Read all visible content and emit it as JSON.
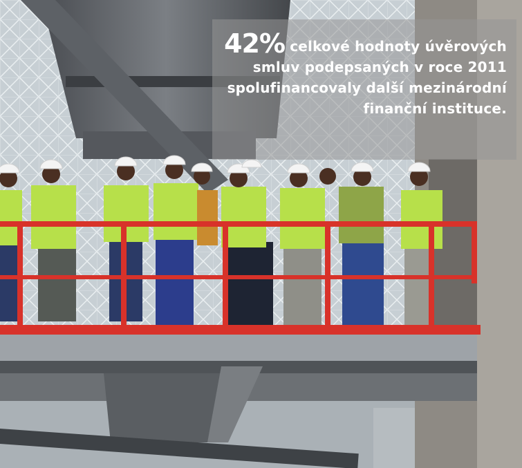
{
  "caption": {
    "highlight": "42%",
    "text": " celkové hodnoty úvěrových smluv podepsaných v roce 2011 spolufinancovaly další mezinárodní finanční instituce."
  },
  "photo": {
    "subject": "Workers in hard hats and high-visibility vests standing on a red-railed steel platform at an industrial plant",
    "colors": {
      "railing": "#d8322a",
      "vest": "#b7e04a",
      "helmet": "#f4f4f4",
      "sky_grid": "#d6dde2"
    }
  }
}
